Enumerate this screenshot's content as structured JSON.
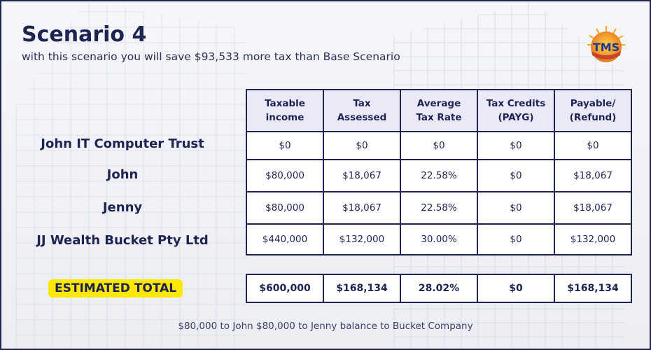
{
  "slide": {
    "title": "Scenario 4",
    "subtitle": "with this scenario you will save $93,533 more tax than Base Scenario",
    "logo_text": "TMS",
    "footnote": "$80,000 to John $80,000 to Jenny balance to Bucket Company"
  },
  "table": {
    "headers": [
      [
        "Taxable",
        "income"
      ],
      [
        "Tax",
        "Assessed"
      ],
      [
        "Average",
        "Tax Rate"
      ],
      [
        "Tax Credits",
        "(PAYG)"
      ],
      [
        "Payable/",
        "(Refund)"
      ]
    ],
    "rows": [
      {
        "label": "John IT Computer Trust",
        "values": [
          "$0",
          "$0",
          "$0",
          "$0",
          "$0"
        ]
      },
      {
        "label": "John",
        "values": [
          "$80,000",
          "$18,067",
          "22.58%",
          "$0",
          "$18,067"
        ]
      },
      {
        "label": "Jenny",
        "values": [
          "$80,000",
          "$18,067",
          "22.58%",
          "$0",
          "$18,067"
        ]
      },
      {
        "label": "JJ Wealth Bucket Pty Ltd",
        "values": [
          "$440,000",
          "$132,000",
          "30.00%",
          "$0",
          "$132,000"
        ]
      }
    ],
    "total": {
      "label": "ESTIMATED TOTAL",
      "values": [
        "$600,000",
        "$168,134",
        "28.02%",
        "$0",
        "$168,134"
      ]
    }
  },
  "colors": {
    "navy": "#1e2452",
    "header_fill": "#eae9f8",
    "highlight": "#ffe800",
    "logo_orange": "#e8761e",
    "logo_blue": "#1e3a8a"
  }
}
